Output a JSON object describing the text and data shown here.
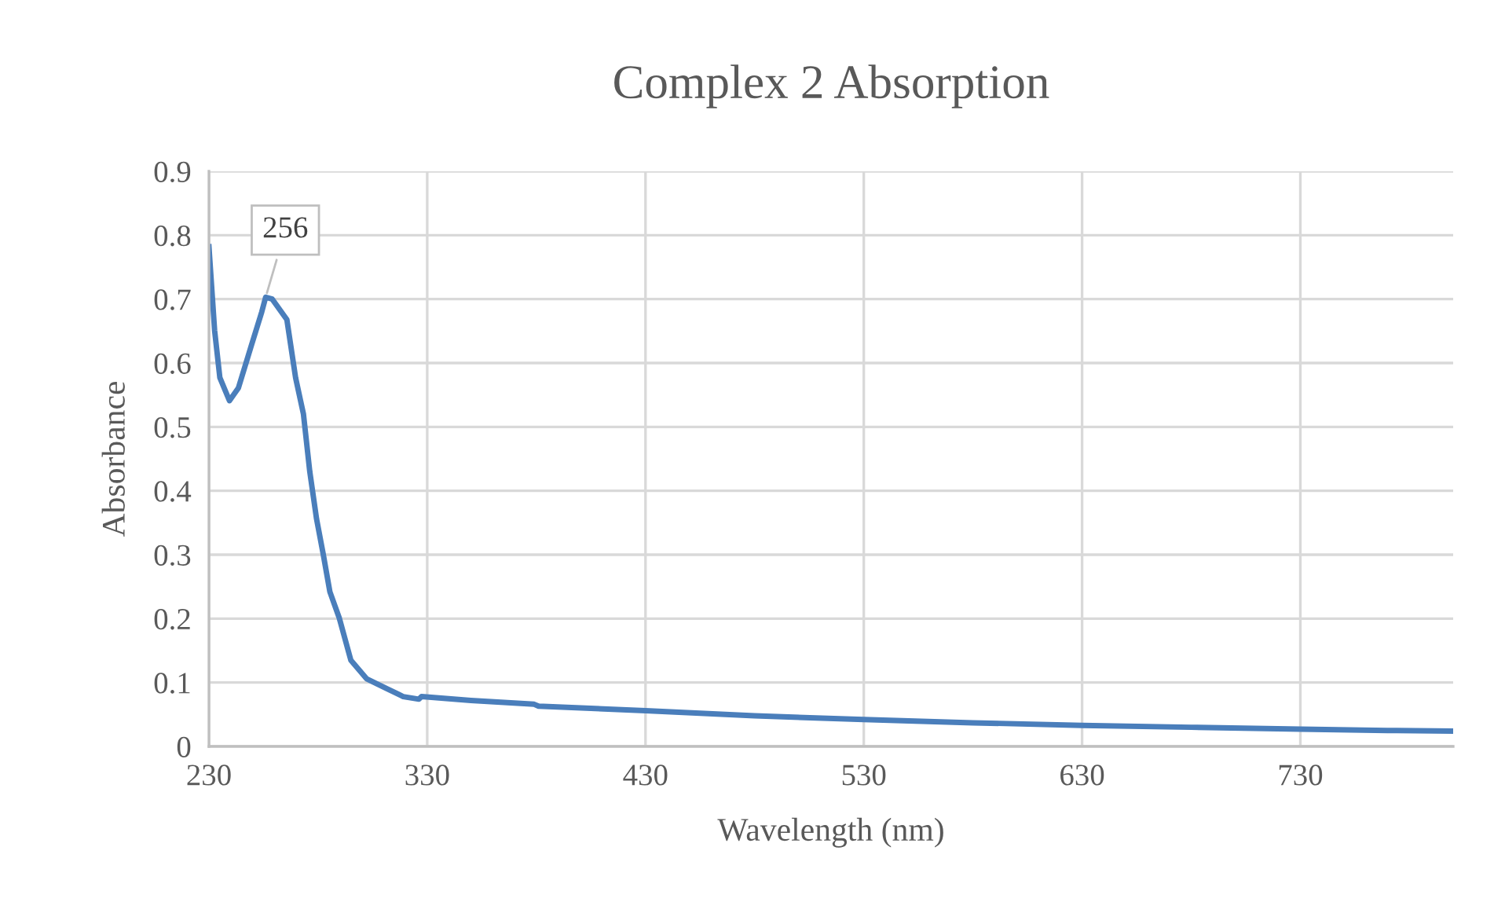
{
  "chart_data": {
    "type": "line",
    "title": "Complex 2 Absorption",
    "xlabel": "Wavelength (nm)",
    "ylabel": "Absorbance",
    "x": [
      230,
      232.6,
      235,
      239.4,
      243.5,
      249.4,
      254.2,
      256,
      259,
      265.7,
      269.7,
      273.3,
      276.2,
      279.3,
      282.4,
      285.4,
      289.7,
      295,
      302.2,
      311.8,
      319,
      326.2,
      327.4,
      350,
      379,
      381,
      430,
      480,
      530,
      580,
      630,
      680,
      730,
      770,
      800
    ],
    "series": [
      {
        "color": "#4a7ebb",
        "values": [
          0.782,
          0.651,
          0.577,
          0.541,
          0.561,
          0.627,
          0.68,
          0.703,
          0.7,
          0.668,
          0.577,
          0.52,
          0.43,
          0.356,
          0.3,
          0.242,
          0.201,
          0.135,
          0.106,
          0.09,
          0.078,
          0.074,
          0.078,
          0.072,
          0.066,
          0.063,
          0.056,
          0.048,
          0.042,
          0.037,
          0.033,
          0.03,
          0.027,
          0.025,
          0.024
        ]
      }
    ],
    "annotations": [
      {
        "text": "256",
        "x": 256,
        "y": 0.703
      }
    ],
    "xlim": [
      230,
      800
    ],
    "xticks": [
      230,
      330,
      430,
      530,
      630,
      730
    ],
    "ylim": [
      0,
      0.9
    ],
    "yticks": [
      0,
      0.1,
      0.2,
      0.3,
      0.4,
      0.5,
      0.6,
      0.7,
      0.8,
      0.9
    ],
    "grid": true,
    "legend": false,
    "marker": "none",
    "line_style": "solid"
  }
}
